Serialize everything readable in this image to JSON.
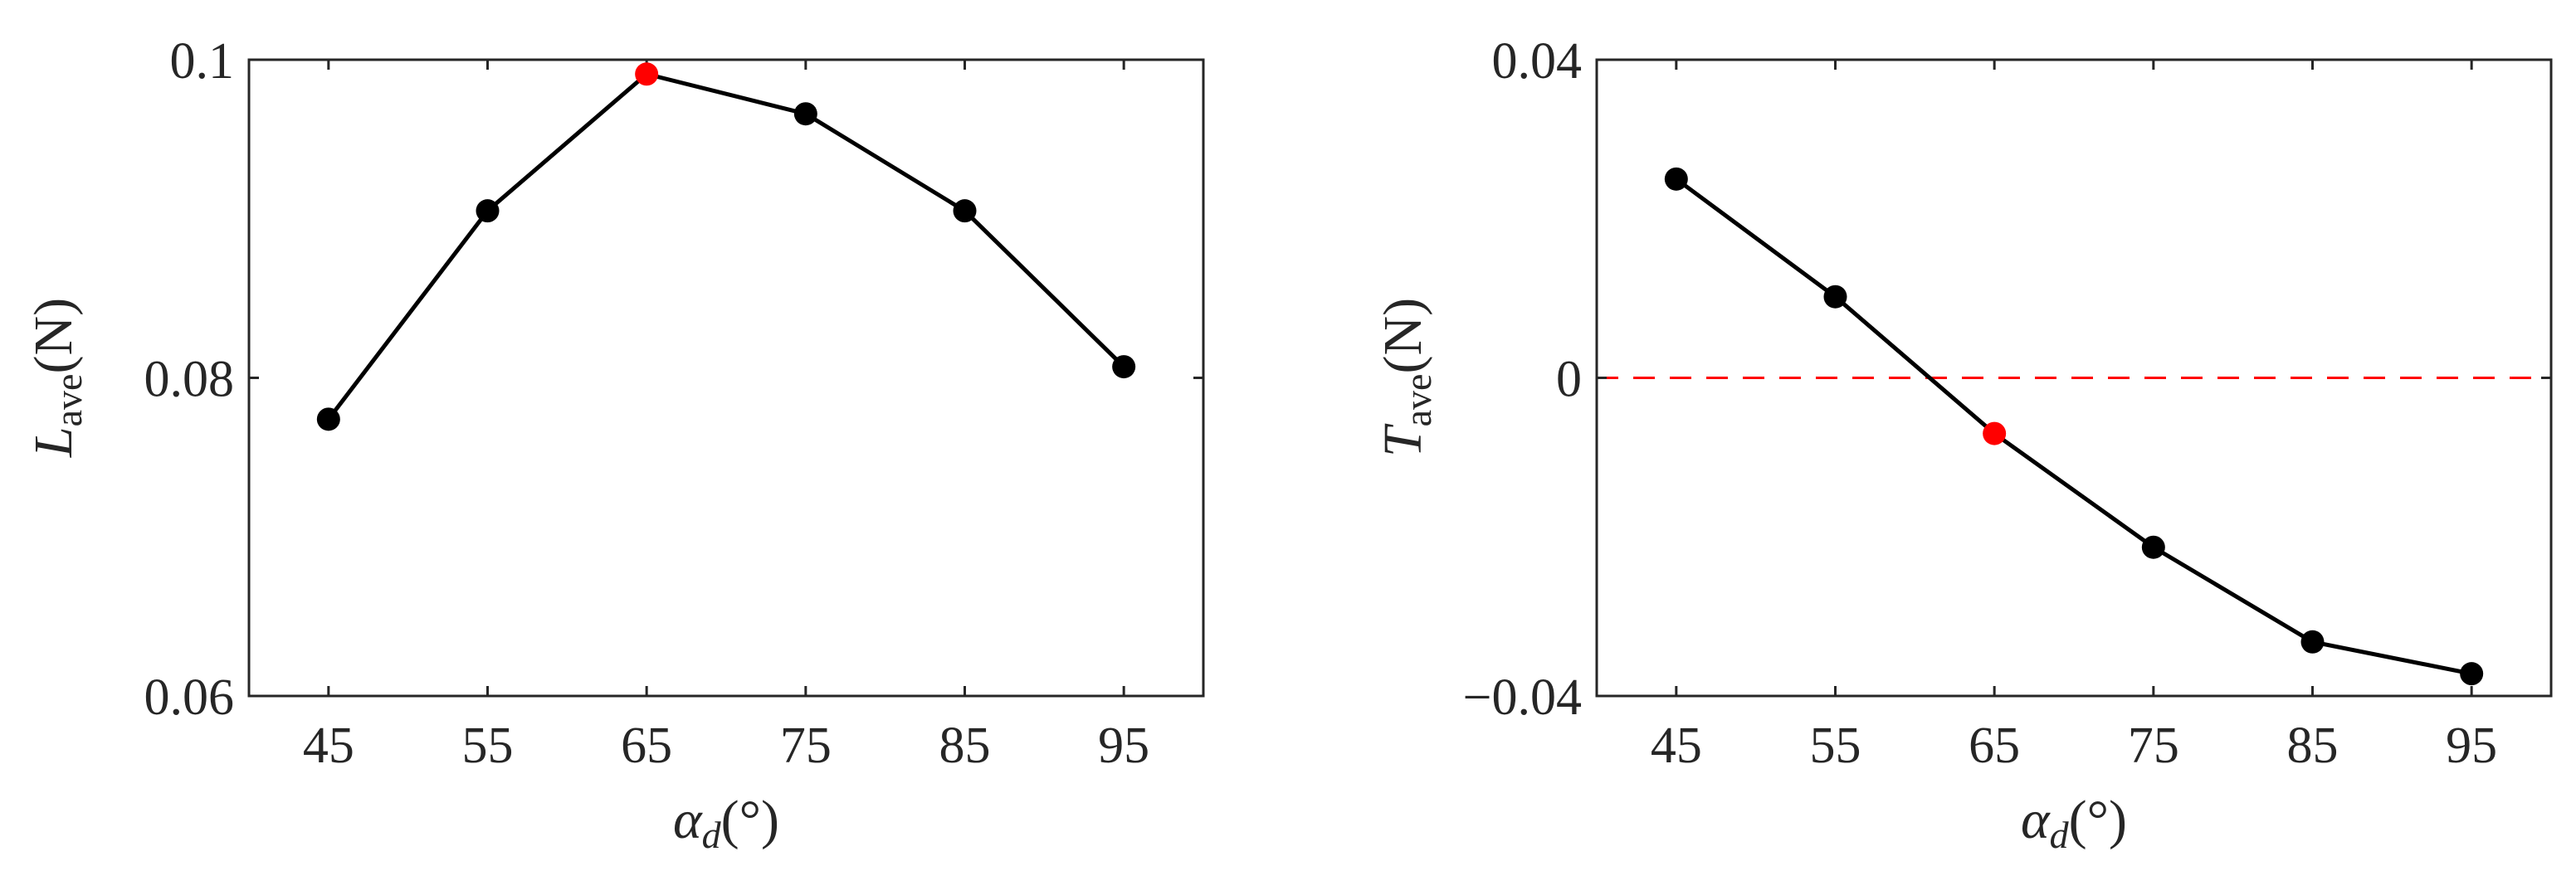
{
  "chart_data": [
    {
      "type": "line",
      "x": [
        45,
        55,
        65,
        75,
        85,
        95
      ],
      "series": [
        {
          "values": [
            0.0774,
            0.0905,
            0.0991,
            0.0966,
            0.0905,
            0.0807
          ]
        }
      ],
      "highlight": {
        "index": 2,
        "color": "#ff0000"
      },
      "xlim": [
        40,
        100
      ],
      "ylim": [
        0.06,
        0.1
      ],
      "xticks": [
        45,
        55,
        65,
        75,
        85,
        95
      ],
      "xtick_labels": [
        "45",
        "55",
        "65",
        "75",
        "85",
        "95"
      ],
      "yticks": [
        0.06,
        0.08,
        0.1
      ],
      "ytick_labels": [
        "0.06",
        "0.08",
        "0.1"
      ],
      "xlabel": {
        "symbol": "α",
        "sub": "d",
        "unit": "(°)"
      },
      "ylabel": {
        "symbol": "L",
        "sub": "ave",
        "unit": "(N)"
      },
      "grid": false,
      "line_color": "#000000",
      "marker_color": "#000000"
    },
    {
      "type": "line",
      "x": [
        45,
        55,
        65,
        75,
        85,
        95
      ],
      "series": [
        {
          "values": [
            0.025,
            0.0102,
            -0.007,
            -0.0213,
            -0.0332,
            -0.0372
          ]
        }
      ],
      "highlight": {
        "index": 2,
        "color": "#ff0000"
      },
      "reference_line": {
        "y": 0,
        "style": "dashed",
        "color": "#ff0000"
      },
      "xlim": [
        40,
        100
      ],
      "ylim": [
        -0.04,
        0.04
      ],
      "xticks": [
        45,
        55,
        65,
        75,
        85,
        95
      ],
      "xtick_labels": [
        "45",
        "55",
        "65",
        "75",
        "85",
        "95"
      ],
      "yticks": [
        -0.04,
        0,
        0.04
      ],
      "ytick_labels": [
        "−0.04",
        "0",
        "0.04"
      ],
      "xlabel": {
        "symbol": "α",
        "sub": "d",
        "unit": "(°)"
      },
      "ylabel": {
        "symbol": "T",
        "sub": "ave",
        "unit": "(N)"
      },
      "grid": false,
      "line_color": "#000000",
      "marker_color": "#000000"
    }
  ]
}
